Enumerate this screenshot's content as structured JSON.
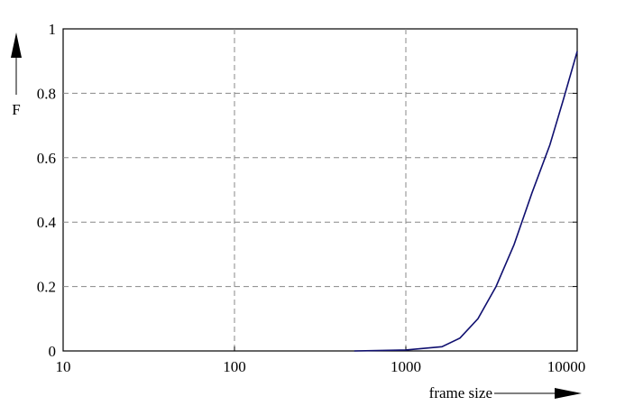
{
  "chart_data": {
    "type": "line",
    "y_label": "F",
    "x_label": "frame size",
    "x_scale": "log",
    "grid": true,
    "xlim": [
      10,
      10000
    ],
    "xticks": [
      10,
      100,
      1000,
      10000
    ],
    "ylim": [
      0,
      1
    ],
    "yticks": [
      0,
      0.2,
      0.4,
      0.6,
      0.8,
      1
    ],
    "series": [
      {
        "color": "#101070",
        "x": [
          500,
          1000,
          1624,
          2070,
          2635,
          3360,
          4280,
          5440,
          6930,
          8300,
          10000
        ],
        "values": [
          0,
          0.003,
          0.013,
          0.04,
          0.1,
          0.2,
          0.33,
          0.49,
          0.64,
          0.78,
          0.93
        ]
      }
    ]
  }
}
